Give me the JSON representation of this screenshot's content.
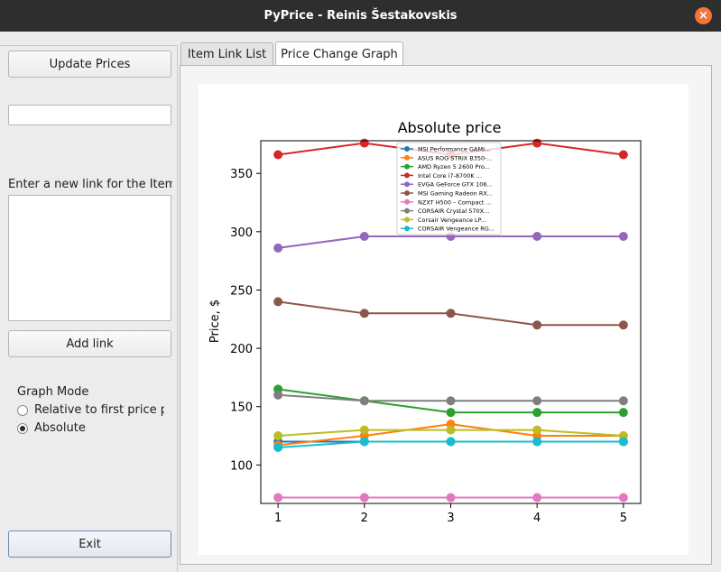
{
  "window": {
    "title": "PyPrice - Reinis Šestakovskis",
    "close_glyph": "×"
  },
  "left_panel": {
    "update_button": "Update Prices",
    "search_value": "",
    "link_prompt": "Enter a new link for the Item L",
    "link_text": "",
    "add_link_button": "Add link",
    "graph_mode_label": "Graph Mode",
    "graph_modes": [
      {
        "label": "Relative to first price pc",
        "checked": false
      },
      {
        "label": "Absolute",
        "checked": true
      }
    ],
    "exit_button": "Exit"
  },
  "tabs": [
    {
      "label": "Item Link List",
      "active": false
    },
    {
      "label": "Price Change Graph",
      "active": true
    }
  ],
  "chart_data": {
    "type": "line",
    "title": "Absolute price",
    "xlabel": "",
    "ylabel": "Price, $",
    "x": [
      1,
      2,
      3,
      4,
      5
    ],
    "xlim": [
      0.8,
      5.2
    ],
    "ylim": [
      67,
      378
    ],
    "yticks": [
      100,
      150,
      200,
      250,
      300,
      350
    ],
    "legend_position": "top-center",
    "series": [
      {
        "name": "MSI Performance GAMI...",
        "color": "#1f77b4",
        "values": [
          120,
          120,
          120,
          120,
          120
        ]
      },
      {
        "name": "ASUS ROG STRIX B350-...",
        "color": "#ff7f0e",
        "values": [
          117,
          125,
          135,
          125,
          125
        ]
      },
      {
        "name": "AMD Ryzen 5 2600 Pro...",
        "color": "#2ca02c",
        "values": [
          165,
          155,
          145,
          145,
          145
        ]
      },
      {
        "name": "Intel Core i7-8700K ...",
        "color": "#d62728",
        "values": [
          366,
          376,
          366,
          376,
          366
        ]
      },
      {
        "name": "EVGA GeForce GTX 106...",
        "color": "#9467bd",
        "values": [
          286,
          296,
          296,
          296,
          296
        ]
      },
      {
        "name": "MSI Gaming Radeon RX...",
        "color": "#8c564b",
        "values": [
          240,
          230,
          230,
          220,
          220
        ]
      },
      {
        "name": "NZXT H500 – Compact ...",
        "color": "#e377c2",
        "values": [
          72,
          72,
          72,
          72,
          72
        ]
      },
      {
        "name": "CORSAIR Crystal 570X...",
        "color": "#7f7f7f",
        "values": [
          160,
          155,
          155,
          155,
          155
        ]
      },
      {
        "name": "Corsair Vengeance LP...",
        "color": "#bcbd22",
        "values": [
          125,
          130,
          130,
          130,
          125
        ]
      },
      {
        "name": "CORSAIR Vengeance RG...",
        "color": "#17becf",
        "values": [
          115,
          120,
          120,
          120,
          120
        ]
      }
    ]
  }
}
